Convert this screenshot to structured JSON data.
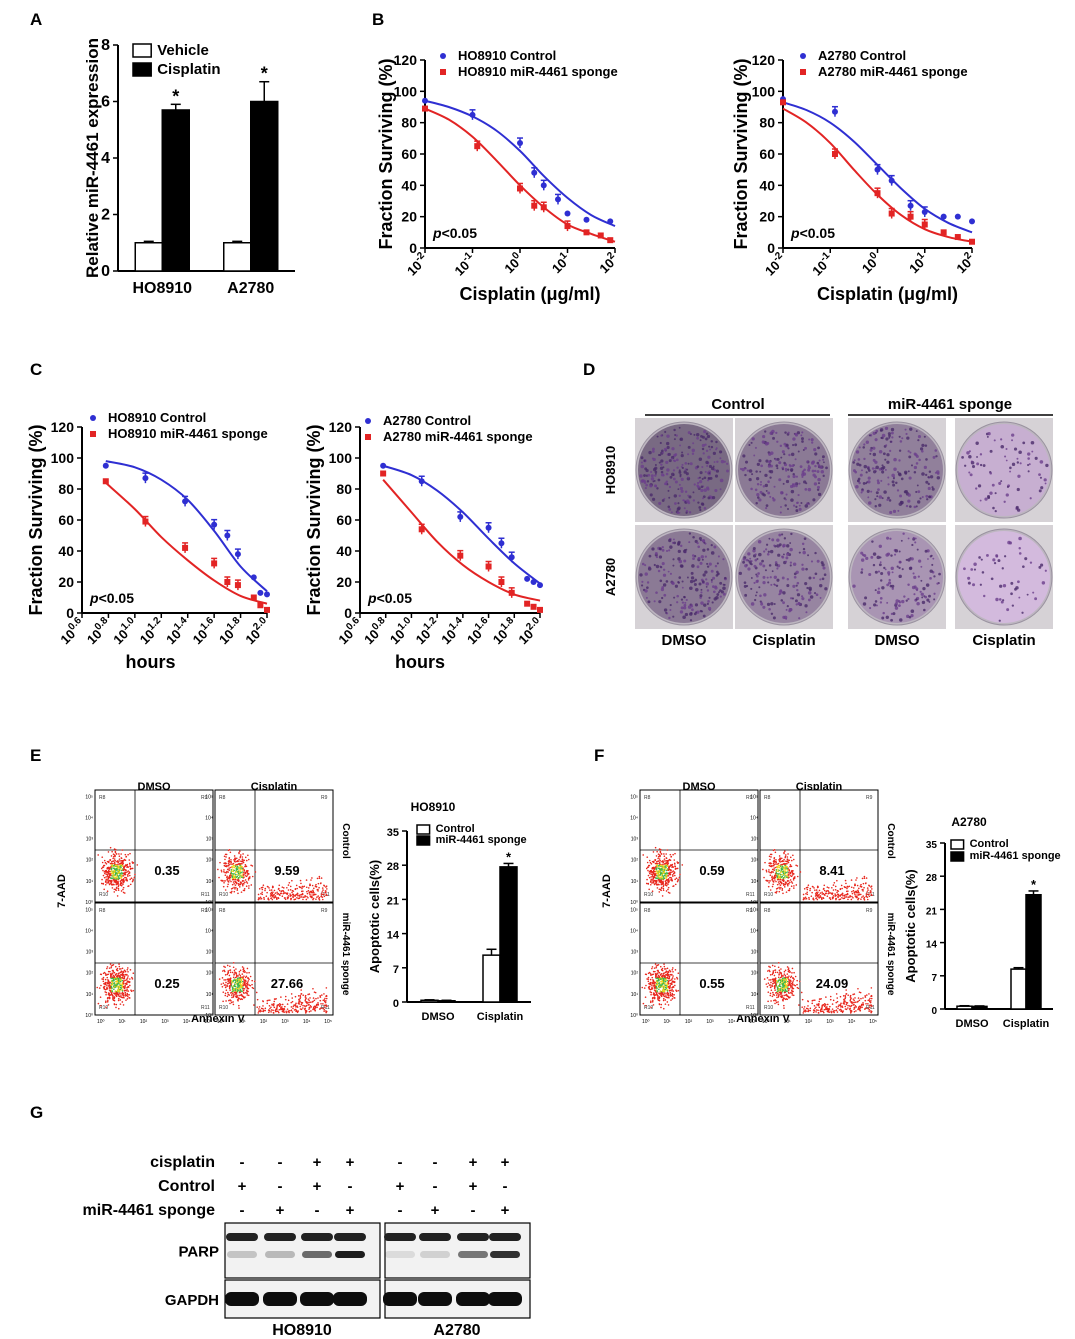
{
  "panels": {
    "A": "A",
    "B": "B",
    "C": "C",
    "D": "D",
    "E": "E",
    "F": "F",
    "G": "G"
  },
  "chart_data": [
    {
      "id": "A",
      "type": "bar",
      "ylabel": "Relative miR-4461 expression",
      "categories": [
        "HO8910",
        "A2780"
      ],
      "series": [
        {
          "name": "Vehicle",
          "values": [
            1.0,
            1.0
          ],
          "errors": [
            0.05,
            0.05
          ],
          "color": "#ffffff"
        },
        {
          "name": "Cisplatin",
          "values": [
            5.7,
            6.0
          ],
          "errors": [
            0.2,
            0.7
          ],
          "color": "#000000"
        }
      ],
      "ylim": [
        0,
        8
      ],
      "yticks": [
        "0",
        "2",
        "4",
        "6",
        "8"
      ],
      "significance": [
        "*",
        "*"
      ]
    },
    {
      "id": "B1",
      "type": "line",
      "ylabel": "Fraction Surviving (%)",
      "xlabel": "Cisplatin (μg/ml)",
      "xticks": [
        {
          "base": "10",
          "exp": "-2"
        },
        {
          "base": "10",
          "exp": "-1"
        },
        {
          "base": "10",
          "exp": "0"
        },
        {
          "base": "10",
          "exp": "1"
        },
        {
          "base": "10",
          "exp": "2"
        }
      ],
      "yticks": [
        "0",
        "20",
        "40",
        "60",
        "80",
        "100",
        "120"
      ],
      "ylim": [
        0,
        120
      ],
      "pvalue_p": "p",
      "pvalue_rest": "<0.05",
      "series": [
        {
          "name": "HO8910 Control",
          "color": "#2f2fd2",
          "points": [
            [
              -2,
              94
            ],
            [
              -1,
              85
            ],
            [
              0,
              67
            ],
            [
              0.3,
              48
            ],
            [
              0.5,
              40
            ],
            [
              0.8,
              31
            ],
            [
              1,
              22
            ],
            [
              1.4,
              18
            ],
            [
              1.9,
              17
            ]
          ],
          "fit": [
            [
              -2,
              94
            ],
            [
              -1.5,
              90
            ],
            [
              -1,
              84
            ],
            [
              -0.5,
              75
            ],
            [
              0,
              62
            ],
            [
              0.5,
              46
            ],
            [
              1,
              32
            ],
            [
              1.5,
              21
            ],
            [
              2,
              14
            ]
          ]
        },
        {
          "name": "HO8910 miR-4461 sponge",
          "color": "#e22424",
          "points": [
            [
              -2,
              89
            ],
            [
              -0.9,
              65
            ],
            [
              0,
              38
            ],
            [
              0.3,
              27
            ],
            [
              0.5,
              26
            ],
            [
              1,
              14
            ],
            [
              1.4,
              10
            ],
            [
              1.7,
              8
            ],
            [
              1.9,
              5
            ]
          ],
          "fit": [
            [
              -2,
              89
            ],
            [
              -1.5,
              82
            ],
            [
              -1,
              71
            ],
            [
              -0.5,
              56
            ],
            [
              0,
              40
            ],
            [
              0.5,
              26
            ],
            [
              1,
              15
            ],
            [
              1.5,
              9
            ],
            [
              2,
              4
            ]
          ]
        }
      ]
    },
    {
      "id": "B2",
      "type": "line",
      "ylabel": "Fraction Surviving (%)",
      "xlabel": "Cisplatin (μg/ml)",
      "xticks": [
        {
          "base": "10",
          "exp": "-2"
        },
        {
          "base": "10",
          "exp": "-1"
        },
        {
          "base": "10",
          "exp": "0"
        },
        {
          "base": "10",
          "exp": "1"
        },
        {
          "base": "10",
          "exp": "2"
        }
      ],
      "yticks": [
        "0",
        "20",
        "40",
        "60",
        "80",
        "100",
        "120"
      ],
      "ylim": [
        0,
        120
      ],
      "pvalue_p": "p",
      "pvalue_rest": "<0.05",
      "series": [
        {
          "name": "A2780 Control",
          "color": "#2f2fd2",
          "points": [
            [
              -2,
              95
            ],
            [
              -0.9,
              87
            ],
            [
              0,
              50
            ],
            [
              0.3,
              43
            ],
            [
              0.7,
              27
            ],
            [
              1,
              23
            ],
            [
              1.4,
              20
            ],
            [
              1.7,
              20
            ],
            [
              2,
              17
            ]
          ],
          "fit": [
            [
              -2,
              93
            ],
            [
              -1.5,
              88
            ],
            [
              -1,
              80
            ],
            [
              -0.5,
              68
            ],
            [
              0,
              53
            ],
            [
              0.5,
              38
            ],
            [
              1,
              25
            ],
            [
              1.5,
              16
            ],
            [
              2,
              10
            ]
          ]
        },
        {
          "name": "A2780 miR-4461 sponge",
          "color": "#e22424",
          "points": [
            [
              -2,
              93
            ],
            [
              -0.9,
              60
            ],
            [
              0,
              35
            ],
            [
              0.3,
              22
            ],
            [
              0.7,
              20
            ],
            [
              1,
              15
            ],
            [
              1.4,
              10
            ],
            [
              1.7,
              7
            ],
            [
              2,
              4
            ]
          ],
          "fit": [
            [
              -2,
              89
            ],
            [
              -1.5,
              80
            ],
            [
              -1,
              67
            ],
            [
              -0.5,
              50
            ],
            [
              0,
              34
            ],
            [
              0.5,
              21
            ],
            [
              1,
              12
            ],
            [
              1.5,
              7
            ],
            [
              2,
              4
            ]
          ]
        }
      ]
    },
    {
      "id": "C1",
      "type": "line",
      "ylabel": "Fraction Surviving (%)",
      "xlabel": "hours",
      "xticks": [
        {
          "base": "10",
          "exp": "0.6"
        },
        {
          "base": "10",
          "exp": "0.8"
        },
        {
          "base": "10",
          "exp": "1.0"
        },
        {
          "base": "10",
          "exp": "1.2"
        },
        {
          "base": "10",
          "exp": "1.4"
        },
        {
          "base": "10",
          "exp": "1.6"
        },
        {
          "base": "10",
          "exp": "1.8"
        },
        {
          "base": "10",
          "exp": "2.0"
        }
      ],
      "yticks": [
        "0",
        "20",
        "40",
        "60",
        "80",
        "100",
        "120"
      ],
      "ylim": [
        0,
        120
      ],
      "pvalue_p": "p",
      "pvalue_rest": "<0.05",
      "series": [
        {
          "name": "HO8910 Control",
          "color": "#2f2fd2",
          "points": [
            [
              0.78,
              95
            ],
            [
              1.08,
              87
            ],
            [
              1.38,
              72
            ],
            [
              1.6,
              57
            ],
            [
              1.7,
              50
            ],
            [
              1.78,
              38
            ],
            [
              1.9,
              23
            ],
            [
              1.95,
              13
            ],
            [
              2.0,
              12
            ]
          ],
          "fit": [
            [
              0.78,
              98
            ],
            [
              1.0,
              94
            ],
            [
              1.2,
              86
            ],
            [
              1.4,
              73
            ],
            [
              1.6,
              53
            ],
            [
              1.8,
              30
            ],
            [
              2.0,
              14
            ]
          ]
        },
        {
          "name": "HO8910 miR-4461 sponge",
          "color": "#e22424",
          "points": [
            [
              0.78,
              85
            ],
            [
              1.08,
              59
            ],
            [
              1.38,
              42
            ],
            [
              1.6,
              32
            ],
            [
              1.7,
              20
            ],
            [
              1.78,
              18
            ],
            [
              1.9,
              10
            ],
            [
              1.95,
              5
            ],
            [
              2.0,
              2
            ]
          ],
          "fit": [
            [
              0.78,
              84
            ],
            [
              1.0,
              67
            ],
            [
              1.2,
              49
            ],
            [
              1.4,
              34
            ],
            [
              1.6,
              21
            ],
            [
              1.8,
              11
            ],
            [
              2.0,
              6
            ]
          ]
        }
      ]
    },
    {
      "id": "C2",
      "type": "line",
      "ylabel": "Fraction Surviving (%)",
      "xlabel": "hours",
      "xticks": [
        {
          "base": "10",
          "exp": "0.6"
        },
        {
          "base": "10",
          "exp": "0.8"
        },
        {
          "base": "10",
          "exp": "1.0"
        },
        {
          "base": "10",
          "exp": "1.2"
        },
        {
          "base": "10",
          "exp": "1.4"
        },
        {
          "base": "10",
          "exp": "1.6"
        },
        {
          "base": "10",
          "exp": "1.8"
        },
        {
          "base": "10",
          "exp": "2.0"
        }
      ],
      "yticks": [
        "0",
        "20",
        "40",
        "60",
        "80",
        "100",
        "120"
      ],
      "ylim": [
        0,
        120
      ],
      "pvalue_p": "p",
      "pvalue_rest": "<0.05",
      "series": [
        {
          "name": "A2780 Control",
          "color": "#2f2fd2",
          "points": [
            [
              0.78,
              95
            ],
            [
              1.08,
              85
            ],
            [
              1.38,
              62
            ],
            [
              1.6,
              55
            ],
            [
              1.7,
              45
            ],
            [
              1.78,
              36
            ],
            [
              1.9,
              22
            ],
            [
              1.95,
              20
            ],
            [
              2.0,
              18
            ]
          ],
          "fit": [
            [
              0.78,
              95
            ],
            [
              1.0,
              89
            ],
            [
              1.2,
              79
            ],
            [
              1.4,
              65
            ],
            [
              1.6,
              48
            ],
            [
              1.8,
              32
            ],
            [
              2.0,
              19
            ]
          ]
        },
        {
          "name": "A2780 miR-4461 sponge",
          "color": "#e22424",
          "points": [
            [
              0.78,
              90
            ],
            [
              1.08,
              54
            ],
            [
              1.38,
              37
            ],
            [
              1.6,
              30
            ],
            [
              1.7,
              20
            ],
            [
              1.78,
              13
            ],
            [
              1.9,
              6
            ],
            [
              1.95,
              4
            ],
            [
              2.0,
              2
            ]
          ],
          "fit": [
            [
              0.78,
              86
            ],
            [
              1.0,
              65
            ],
            [
              1.2,
              46
            ],
            [
              1.4,
              31
            ],
            [
              1.6,
              20
            ],
            [
              1.8,
              12
            ],
            [
              2.0,
              8
            ]
          ]
        }
      ]
    },
    {
      "id": "E-bar",
      "type": "bar",
      "title": "HO8910",
      "ylabel": "Apoptotic cells(%)",
      "categories": [
        "DMSO",
        "Cisplatin"
      ],
      "series": [
        {
          "name": "Control",
          "values": [
            0.35,
            9.59
          ],
          "errors": [
            0.1,
            1.2
          ],
          "color": "#ffffff"
        },
        {
          "name": "miR-4461 sponge",
          "values": [
            0.25,
            27.66
          ],
          "errors": [
            0.1,
            0.7
          ],
          "color": "#000000"
        }
      ],
      "ylim": [
        0,
        35
      ],
      "yticks": [
        "0",
        "7",
        "14",
        "21",
        "28",
        "35"
      ],
      "significance": [
        "",
        "*"
      ]
    },
    {
      "id": "F-bar",
      "type": "bar",
      "title": "A2780",
      "ylabel": "Apoptotic cells(%)",
      "categories": [
        "DMSO",
        "Cisplatin"
      ],
      "series": [
        {
          "name": "Control",
          "values": [
            0.59,
            8.41
          ],
          "errors": [
            0.1,
            0.3
          ],
          "color": "#ffffff"
        },
        {
          "name": "miR-4461 sponge",
          "values": [
            0.55,
            24.09
          ],
          "errors": [
            0.1,
            0.8
          ],
          "color": "#000000"
        }
      ],
      "ylim": [
        0,
        35
      ],
      "yticks": [
        "0",
        "7",
        "14",
        "21",
        "28",
        "35"
      ],
      "significance": [
        "",
        "*"
      ]
    }
  ],
  "colony": {
    "group_control": "Control",
    "group_sponge": "miR-4461 sponge",
    "row_labels": [
      "HO8910",
      "A2780"
    ],
    "col_labels": [
      "DMSO",
      "Cisplatin",
      "DMSO",
      "Cisplatin"
    ],
    "densities": [
      [
        0.95,
        0.8,
        0.75,
        0.3
      ],
      [
        0.8,
        0.7,
        0.55,
        0.2
      ]
    ]
  },
  "flow": {
    "E": {
      "col_titles": [
        "DMSO",
        "Cisplatin"
      ],
      "row_labels": [
        "Control",
        "miR-4461 sponge"
      ],
      "values": [
        "0.35",
        "9.59",
        "0.25",
        "27.66"
      ],
      "ylabel": "7-AAD",
      "xlabel": "Annexin V"
    },
    "F": {
      "col_titles": [
        "DMSO",
        "Cisplatin"
      ],
      "row_labels": [
        "Control",
        "miR-4461 sponge"
      ],
      "values": [
        "0.59",
        "8.41",
        "0.55",
        "24.09"
      ],
      "ylabel": "7-AAD",
      "xlabel": "Annexin V"
    },
    "tick_labels": [
      "10⁰",
      "10¹",
      "10²",
      "10³",
      "10⁴",
      "10⁵"
    ],
    "gate_labels": [
      "R8",
      "R9",
      "R10",
      "R11"
    ]
  },
  "western": {
    "row_labels": [
      "cisplatin",
      "Control",
      "miR-4461 sponge"
    ],
    "signs": [
      [
        "-",
        "-",
        "+",
        "+",
        "-",
        "-",
        "+",
        "+"
      ],
      [
        "+",
        "-",
        "+",
        "-",
        "+",
        "-",
        "+",
        "-"
      ],
      [
        "-",
        "+",
        "-",
        "+",
        "-",
        "+",
        "-",
        "+"
      ]
    ],
    "blot_labels": [
      "PARP",
      "GAPDH"
    ],
    "cell_lines": [
      "HO8910",
      "A2780"
    ],
    "parp_cleaved_intensity": [
      0.2,
      0.25,
      0.6,
      0.95,
      0.1,
      0.15,
      0.55,
      0.85
    ]
  }
}
